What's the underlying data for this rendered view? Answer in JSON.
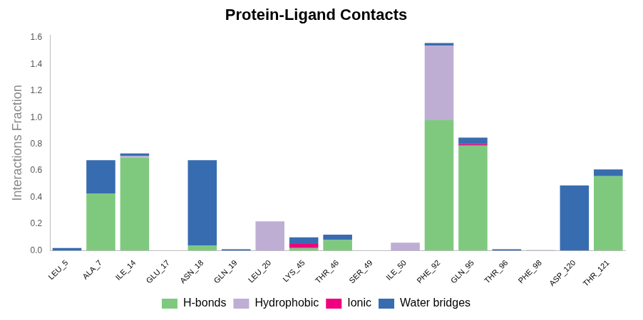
{
  "chart_data": {
    "type": "bar",
    "title": "Protein-Ligand Contacts",
    "y_label": "Interactions Fraction",
    "categories": [
      "LEU_5",
      "ALA_7",
      "ILE_14",
      "GLU_17",
      "ASN_18",
      "GLN_19",
      "LEU_20",
      "LYS_45",
      "THR_46",
      "SER_49",
      "ILE_50",
      "PHE_92",
      "GLN_95",
      "THR_96",
      "PHE_98",
      "ASP_120",
      "THR_121"
    ],
    "series": [
      {
        "name": "H-bonds",
        "color": "#7fc97f",
        "values": [
          0,
          0.43,
          0.7,
          0,
          0.04,
          0,
          0,
          0.02,
          0.08,
          0,
          0,
          0.98,
          0.79,
          0,
          0,
          0,
          0.56
        ]
      },
      {
        "name": "Hydrophobic",
        "color": "#beaed4",
        "values": [
          0,
          0,
          0.01,
          0,
          0,
          0,
          0.22,
          0,
          0,
          0,
          0.06,
          0.56,
          0,
          0,
          0.005,
          0,
          0
        ]
      },
      {
        "name": "Ionic",
        "color": "#f0027f",
        "values": [
          0,
          0,
          0,
          0,
          0,
          0,
          0,
          0.03,
          0,
          0,
          0,
          0,
          0.01,
          0,
          0,
          0,
          0
        ]
      },
      {
        "name": "Water bridges",
        "color": "#386cb0",
        "values": [
          0.02,
          0.25,
          0.02,
          0,
          0.64,
          0.01,
          0,
          0.05,
          0.04,
          0,
          0,
          0.02,
          0.05,
          0.01,
          0,
          0.49,
          0.05
        ]
      }
    ],
    "stacked": true,
    "legend": "bottom",
    "grid": false,
    "ylim": [
      0,
      1.62
    ],
    "yticks": [
      {
        "value": 0,
        "label": "0.0"
      },
      {
        "value": 0.2,
        "label": "0.2"
      },
      {
        "value": 0.4,
        "label": "0.4"
      },
      {
        "value": 0.6,
        "label": "0.6"
      },
      {
        "value": 0.8,
        "label": "0.8"
      },
      {
        "value": 1,
        "label": "1.0"
      },
      {
        "value": 1.2,
        "label": "1.2"
      },
      {
        "value": 1.4,
        "label": "1.4"
      },
      {
        "value": 1.6,
        "label": "1.6"
      }
    ]
  }
}
